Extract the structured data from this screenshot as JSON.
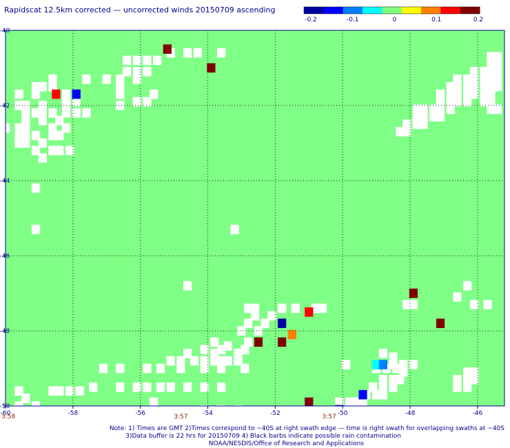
{
  "title": "Rapidscat 12.5km corrected — uncorrected winds 20150709 ascending",
  "colorbar": {
    "ticks": [
      "-0.2",
      "-0.1",
      "0",
      "0.1",
      "0.2"
    ],
    "stops": [
      "#0000a0",
      "#0000ff",
      "#0080ff",
      "#00ffff",
      "#80ff80",
      "#ffff00",
      "#ff8000",
      "#ff0000",
      "#800000"
    ]
  },
  "colors": {
    "background_field": "#7fff86",
    "no_data": "#ffffff",
    "frame": "#00008b",
    "grid": "#1a1a1a",
    "time_label": "#8b2500"
  },
  "notes": {
    "line1": "Note: 1) Times are GMT 2)Times correspond to ~40S at right swath edge — time is right swath for overlapping swaths at ~40S",
    "line2": "3)Data buffer is 22 hrs for 20150709 4) Black barbs indicate possible rain contamination",
    "line3": "NOAA/NESDIS/Office of Research and Applications"
  },
  "chart_data": {
    "type": "heatmap",
    "title": "Rapidscat 12.5km corrected — uncorrected winds 20150709 ascending",
    "xlabel": "",
    "ylabel": "",
    "xlim": [
      -60,
      -45.2
    ],
    "ylim": [
      -50,
      -40
    ],
    "x_ticks": [
      -60,
      -58,
      -56,
      -54,
      -52,
      -50,
      -48,
      -46
    ],
    "x_tick_labels": [
      "-60",
      "-58",
      "-56",
      "-54",
      "-52",
      "-50",
      "-48",
      "-46"
    ],
    "y_ticks": [
      -40,
      -42,
      -44,
      -46,
      -48,
      -50
    ],
    "y_tick_labels": [
      "-40",
      "-42",
      "-44",
      "-46",
      "-48",
      "-50"
    ],
    "grid": true,
    "time_labels": [
      {
        "lon": -60,
        "text": "3:58"
      },
      {
        "lon": -54.8,
        "text": "3:57"
      },
      {
        "lon": -50.4,
        "text": "3:57"
      }
    ],
    "colorbar_range": [
      -0.2,
      0.2
    ],
    "cell_size_deg": [
      0.25,
      0.25
    ],
    "baseline_value": 0,
    "cells": [
      {
        "lon": -55.2,
        "lat": -40.5,
        "value": 0.2
      },
      {
        "lon": -53.9,
        "lat": -41.0,
        "value": 0.2
      },
      {
        "lon": -58.5,
        "lat": -41.7,
        "value": 0.15
      },
      {
        "lon": -57.9,
        "lat": -41.7,
        "value": -0.12
      },
      {
        "lon": -51.0,
        "lat": -47.5,
        "value": 0.14
      },
      {
        "lon": -51.8,
        "lat": -47.8,
        "value": -0.2
      },
      {
        "lon": -51.5,
        "lat": -48.1,
        "value": 0.08
      },
      {
        "lon": -52.5,
        "lat": -48.3,
        "value": 0.2
      },
      {
        "lon": -51.8,
        "lat": -48.3,
        "value": 0.17
      },
      {
        "lon": -47.9,
        "lat": -47.0,
        "value": 0.2
      },
      {
        "lon": -47.1,
        "lat": -47.8,
        "value": 0.2
      },
      {
        "lon": -49.0,
        "lat": -48.9,
        "value": -0.06
      },
      {
        "lon": -48.8,
        "lat": -48.9,
        "value": -0.1
      },
      {
        "lon": -49.4,
        "lat": -49.7,
        "value": -0.13
      },
      {
        "lon": -51.0,
        "lat": -49.9,
        "value": 0.2
      },
      {
        "lon": -50.1,
        "lat": -50.1,
        "value": -0.18
      }
    ],
    "no_data_cells": [
      [
        -55.1,
        -40.6
      ],
      [
        -54.6,
        -40.6
      ],
      [
        -54.3,
        -40.6
      ],
      [
        -53.6,
        -40.6
      ],
      [
        -56.4,
        -40.8
      ],
      [
        -56.1,
        -40.8
      ],
      [
        -55.8,
        -40.8
      ],
      [
        -55.5,
        -40.8
      ],
      [
        -56.4,
        -41.1
      ],
      [
        -56.1,
        -41.1
      ],
      [
        -55.8,
        -41.1
      ],
      [
        -56.1,
        -41.3
      ],
      [
        -58.6,
        -41.3
      ],
      [
        -57.6,
        -41.3
      ],
      [
        -57.0,
        -41.3
      ],
      [
        -56.6,
        -41.3
      ],
      [
        -59.1,
        -41.5
      ],
      [
        -58.9,
        -41.5
      ],
      [
        -58.6,
        -41.5
      ],
      [
        -56.6,
        -41.5
      ],
      [
        -59.6,
        -41.7
      ],
      [
        -59.1,
        -41.7
      ],
      [
        -58.2,
        -41.7
      ],
      [
        -56.6,
        -41.7
      ],
      [
        -55.6,
        -41.7
      ],
      [
        -58.2,
        -41.9
      ],
      [
        -57.9,
        -41.9
      ],
      [
        -55.8,
        -41.9
      ],
      [
        -56.1,
        -41.9
      ],
      [
        -59.6,
        -42.0
      ],
      [
        -59.4,
        -42.0
      ],
      [
        -58.9,
        -42.0
      ],
      [
        -58.2,
        -42.0
      ],
      [
        -56.6,
        -42.0
      ],
      [
        -59.4,
        -42.2
      ],
      [
        -59.1,
        -42.2
      ],
      [
        -58.9,
        -42.2
      ],
      [
        -58.6,
        -42.2
      ],
      [
        -58.2,
        -42.2
      ],
      [
        -57.9,
        -42.2
      ],
      [
        -57.6,
        -42.2
      ],
      [
        -59.4,
        -42.4
      ],
      [
        -58.9,
        -42.4
      ],
      [
        -58.4,
        -42.4
      ],
      [
        -60.0,
        -42.6
      ],
      [
        -59.6,
        -42.6
      ],
      [
        -59.4,
        -42.6
      ],
      [
        -58.6,
        -42.6
      ],
      [
        -58.2,
        -42.6
      ],
      [
        -59.6,
        -42.8
      ],
      [
        -59.4,
        -42.8
      ],
      [
        -59.1,
        -42.8
      ],
      [
        -58.6,
        -42.8
      ],
      [
        -58.4,
        -42.8
      ],
      [
        -59.6,
        -43.0
      ],
      [
        -59.4,
        -43.0
      ],
      [
        -58.9,
        -43.0
      ],
      [
        -59.1,
        -43.2
      ],
      [
        -58.6,
        -43.2
      ],
      [
        -58.4,
        -43.2
      ],
      [
        -58.1,
        -43.2
      ],
      [
        -58.9,
        -43.4
      ],
      [
        -59.1,
        -44.2
      ],
      [
        -59.1,
        -45.3
      ],
      [
        -53.2,
        -45.3
      ],
      [
        -54.6,
        -46.8
      ],
      [
        -52.8,
        -47.4
      ],
      [
        -52.6,
        -47.4
      ],
      [
        -51.8,
        -47.4
      ],
      [
        -51.4,
        -47.4
      ],
      [
        -50.8,
        -47.4
      ],
      [
        -52.6,
        -47.6
      ],
      [
        -52.1,
        -47.6
      ],
      [
        -52.3,
        -47.8
      ],
      [
        -52.8,
        -47.8
      ],
      [
        -53.0,
        -48.0
      ],
      [
        -52.5,
        -48.0
      ],
      [
        -52.8,
        -48.3
      ],
      [
        -53.8,
        -48.3
      ],
      [
        -54.1,
        -48.5
      ],
      [
        -53.6,
        -48.5
      ],
      [
        -54.4,
        -48.8
      ],
      [
        -54.1,
        -48.8
      ],
      [
        -53.8,
        -48.8
      ],
      [
        -53.6,
        -48.8
      ],
      [
        -53.4,
        -48.8
      ],
      [
        -53.1,
        -48.8
      ],
      [
        -55.1,
        -48.8
      ],
      [
        -54.8,
        -48.8
      ],
      [
        -53.8,
        -48.6
      ],
      [
        -54.6,
        -48.6
      ],
      [
        -53.1,
        -48.6
      ],
      [
        -57.1,
        -49.0
      ],
      [
        -56.6,
        -49.0
      ],
      [
        -55.8,
        -49.0
      ],
      [
        -55.4,
        -49.0
      ],
      [
        -54.8,
        -49.0
      ],
      [
        -54.1,
        -49.0
      ],
      [
        -53.6,
        -49.0
      ],
      [
        -52.9,
        -49.0
      ],
      [
        -57.4,
        -49.5
      ],
      [
        -56.6,
        -49.5
      ],
      [
        -56.1,
        -49.5
      ],
      [
        -55.8,
        -49.5
      ],
      [
        -55.4,
        -49.5
      ],
      [
        -55.1,
        -49.5
      ],
      [
        -54.6,
        -49.5
      ],
      [
        -54.1,
        -49.5
      ],
      [
        -53.6,
        -49.5
      ],
      [
        -49.9,
        -48.9
      ],
      [
        -48.5,
        -48.9
      ],
      [
        -48.2,
        -48.9
      ],
      [
        -47.9,
        -48.9
      ],
      [
        -48.8,
        -48.6
      ],
      [
        -48.5,
        -48.7
      ],
      [
        -49.0,
        -49.0
      ],
      [
        -48.7,
        -49.0
      ],
      [
        -48.4,
        -49.0
      ],
      [
        -48.2,
        -49.1
      ],
      [
        -48.8,
        -49.3
      ],
      [
        -48.5,
        -49.3
      ],
      [
        -48.3,
        -49.3
      ],
      [
        -49.1,
        -49.5
      ],
      [
        -48.8,
        -49.5
      ],
      [
        -48.5,
        -49.5
      ],
      [
        -49.3,
        -49.7
      ],
      [
        -49.0,
        -49.7
      ],
      [
        -48.8,
        -49.7
      ],
      [
        -49.6,
        -49.9
      ],
      [
        -49.4,
        -49.9
      ],
      [
        -49.8,
        -49.9
      ],
      [
        -50.1,
        -49.9
      ],
      [
        -51.0,
        -50.0
      ],
      [
        -51.3,
        -50.2
      ],
      [
        -51.1,
        -50.2
      ],
      [
        -50.8,
        -50.2
      ],
      [
        -51.3,
        -50.5
      ],
      [
        -51.0,
        -50.5
      ],
      [
        -50.8,
        -50.5
      ],
      [
        -46.3,
        -46.8
      ],
      [
        -45.7,
        -47.3
      ],
      [
        -46.6,
        -47.1
      ],
      [
        -46.1,
        -47.3
      ],
      [
        -47.9,
        -47.3
      ],
      [
        -48.1,
        -47.3
      ],
      [
        -46.1,
        -49.1
      ],
      [
        -46.3,
        -49.1
      ],
      [
        -46.3,
        -49.3
      ],
      [
        -46.1,
        -49.3
      ],
      [
        -46.6,
        -49.3
      ],
      [
        -46.6,
        -49.5
      ],
      [
        -46.3,
        -49.5
      ],
      [
        -59.6,
        -49.6
      ],
      [
        -59.4,
        -49.8
      ],
      [
        -58.6,
        -49.6
      ],
      [
        -58.1,
        -49.6
      ],
      [
        -57.8,
        -49.6
      ],
      [
        -58.4,
        -49.6
      ],
      [
        -59.6,
        -50.0
      ],
      [
        -59.1,
        -50.0
      ],
      [
        -55.6,
        -49.9
      ],
      [
        -53.6,
        -50.1
      ],
      [
        -53.1,
        -50.1
      ],
      [
        -54.1,
        -50.1
      ],
      [
        -50.6,
        -47.4
      ],
      [
        -53.4,
        -48.4
      ],
      [
        -52.9,
        -48.5
      ],
      [
        -45.6,
        -40.7
      ],
      [
        -45.4,
        -40.7
      ],
      [
        -45.6,
        -40.9
      ],
      [
        -45.4,
        -40.9
      ],
      [
        -46.1,
        -41.1
      ],
      [
        -45.8,
        -41.1
      ],
      [
        -45.6,
        -41.1
      ],
      [
        -45.4,
        -41.1
      ],
      [
        -46.6,
        -41.3
      ],
      [
        -46.3,
        -41.3
      ],
      [
        -46.1,
        -41.3
      ],
      [
        -45.8,
        -41.3
      ],
      [
        -45.6,
        -41.3
      ],
      [
        -45.4,
        -41.3
      ],
      [
        -46.8,
        -41.5
      ],
      [
        -46.6,
        -41.5
      ],
      [
        -46.3,
        -41.5
      ],
      [
        -46.1,
        -41.5
      ],
      [
        -45.8,
        -41.5
      ],
      [
        -45.6,
        -41.5
      ],
      [
        -45.4,
        -41.5
      ],
      [
        -47.1,
        -41.7
      ],
      [
        -46.8,
        -41.7
      ],
      [
        -46.6,
        -41.7
      ],
      [
        -46.3,
        -41.7
      ],
      [
        -46.1,
        -41.7
      ],
      [
        -45.8,
        -41.7
      ],
      [
        -45.6,
        -41.7
      ],
      [
        -47.1,
        -41.9
      ],
      [
        -46.8,
        -41.9
      ],
      [
        -46.6,
        -41.9
      ],
      [
        -46.3,
        -41.9
      ],
      [
        -45.8,
        -41.9
      ],
      [
        -45.6,
        -41.9
      ],
      [
        -47.8,
        -42.1
      ],
      [
        -47.6,
        -42.1
      ],
      [
        -47.3,
        -42.1
      ],
      [
        -47.1,
        -42.1
      ],
      [
        -46.8,
        -42.1
      ],
      [
        -45.6,
        -42.1
      ],
      [
        -45.4,
        -42.1
      ],
      [
        -47.8,
        -42.3
      ],
      [
        -47.6,
        -42.3
      ],
      [
        -47.3,
        -42.3
      ],
      [
        -47.1,
        -42.3
      ],
      [
        -48.1,
        -42.5
      ],
      [
        -47.8,
        -42.5
      ],
      [
        -47.6,
        -42.5
      ],
      [
        -48.3,
        -42.7
      ],
      [
        -48.1,
        -42.7
      ]
    ]
  }
}
